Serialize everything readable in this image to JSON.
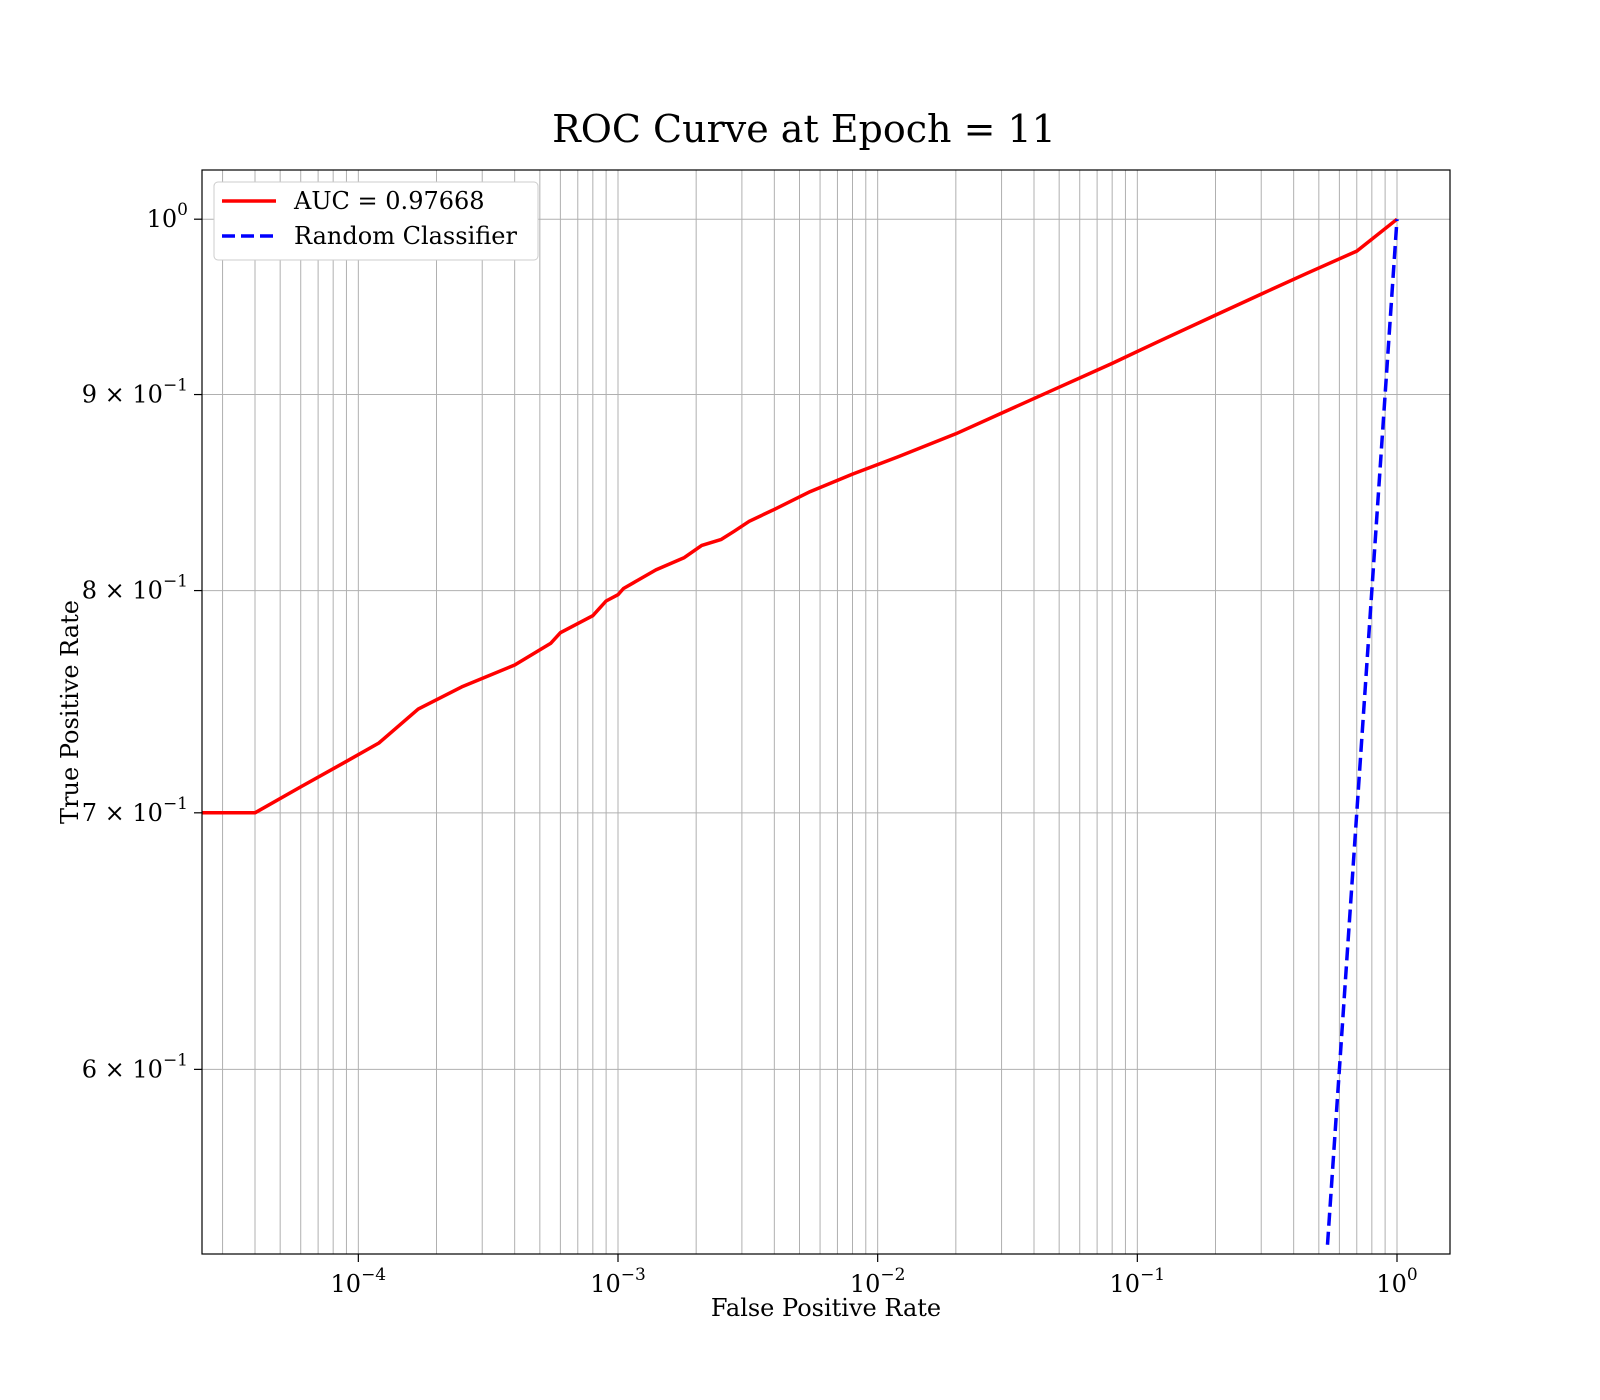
{
  "chart_data": {
    "type": "line",
    "title": "ROC Curve at Epoch = 11",
    "xlabel": "False Positive Rate",
    "ylabel": "True Positive Rate",
    "xscale": "log",
    "yscale": "log",
    "xlim": [
      2.5e-05,
      1.6
    ],
    "ylim": [
      0.537,
      1.03
    ],
    "grid": "both",
    "legend_position": "upper-left",
    "x_ticks": [
      {
        "value": 0.0001,
        "base": "10",
        "exp": "−4"
      },
      {
        "value": 0.001,
        "base": "10",
        "exp": "−3"
      },
      {
        "value": 0.01,
        "base": "10",
        "exp": "−2"
      },
      {
        "value": 0.1,
        "base": "10",
        "exp": "−1"
      },
      {
        "value": 1,
        "base": "10",
        "exp": "0"
      }
    ],
    "y_ticks": [
      {
        "value": 0.6,
        "base": "6 × 10",
        "exp": "−1"
      },
      {
        "value": 0.7,
        "base": "7 × 10",
        "exp": "−1"
      },
      {
        "value": 0.8,
        "base": "8 × 10",
        "exp": "−1"
      },
      {
        "value": 0.9,
        "base": "9 × 10",
        "exp": "−1"
      },
      {
        "value": 1,
        "base": "10",
        "exp": "0"
      }
    ],
    "series": [
      {
        "name": "AUC = 0.97668",
        "color": "#ff0000",
        "style": "solid",
        "x": [
          2.5e-05,
          4e-05,
          6e-05,
          9e-05,
          0.00012,
          0.00017,
          0.00025,
          0.0004,
          0.00055,
          0.0006,
          0.0008,
          0.0009,
          0.001,
          0.00105,
          0.0014,
          0.0018,
          0.0021,
          0.0025,
          0.0028,
          0.0032,
          0.004,
          0.0055,
          0.008,
          0.012,
          0.02,
          0.03,
          0.05,
          0.08,
          0.12,
          0.2,
          0.3,
          0.45,
          0.7,
          1.0
        ],
        "y": [
          0.7,
          0.7,
          0.711,
          0.722,
          0.73,
          0.745,
          0.755,
          0.765,
          0.775,
          0.78,
          0.788,
          0.795,
          0.798,
          0.801,
          0.81,
          0.816,
          0.822,
          0.825,
          0.829,
          0.834,
          0.84,
          0.849,
          0.858,
          0.867,
          0.879,
          0.89,
          0.904,
          0.917,
          0.929,
          0.944,
          0.956,
          0.968,
          0.981,
          1.0
        ]
      },
      {
        "name": "Random Classifier",
        "color": "#0000ff",
        "style": "dashed",
        "x": [
          0.54,
          1.0
        ],
        "y": [
          0.54,
          1.0
        ]
      }
    ]
  }
}
